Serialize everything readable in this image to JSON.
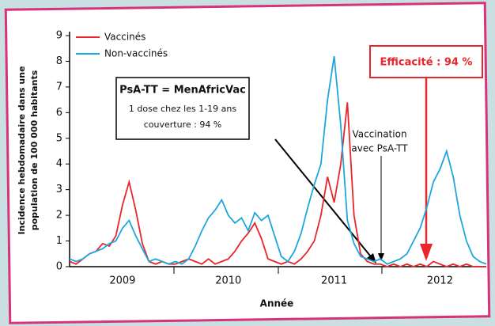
{
  "chart_data": {
    "type": "line",
    "y_label": [
      "Incidence hebdomadaire dans une",
      "population de 100 000 habitants"
    ],
    "x_label": "Année",
    "categories": [
      null,
      null,
      null,
      null,
      null,
      null,
      null,
      null,
      "2009",
      null,
      null,
      null,
      null,
      null,
      null,
      null,
      null,
      null,
      null,
      null,
      null,
      null,
      null,
      null,
      "2010",
      null,
      null,
      null,
      null,
      null,
      null,
      null,
      null,
      null,
      null,
      null,
      null,
      null,
      null,
      null,
      "2011",
      null,
      null,
      null,
      null,
      null,
      null,
      null,
      null,
      null,
      null,
      null,
      null,
      null,
      null,
      null,
      "2012",
      null,
      null,
      null,
      null,
      null,
      null,
      null
    ],
    "series": [
      {
        "name": "Vaccinés",
        "color": "#e8262b",
        "values": [
          0.2,
          0.1,
          0.3,
          0.5,
          0.6,
          0.9,
          0.8,
          1.2,
          2.4,
          3.3,
          2.2,
          0.9,
          0.2,
          0.1,
          0.2,
          0.1,
          0.1,
          0.2,
          0.3,
          0.2,
          0.1,
          0.3,
          0.1,
          0.2,
          0.3,
          0.6,
          1.0,
          1.3,
          1.7,
          1.1,
          0.3,
          0.2,
          0.1,
          0.2,
          0.1,
          0.3,
          0.6,
          1.0,
          2.0,
          3.5,
          2.5,
          4.0,
          6.4,
          2.0,
          0.5,
          0.2,
          0.1,
          0.1,
          0.0,
          0.1,
          0.0,
          0.1,
          0.0,
          0.1,
          0.0,
          0.2,
          0.1,
          0.0,
          0.1,
          0.0,
          0.1,
          0.0,
          0.0,
          0.0
        ]
      },
      {
        "name": "Non-vaccinés",
        "color": "#1ea7dd",
        "values": [
          0.3,
          0.2,
          0.3,
          0.5,
          0.6,
          0.7,
          0.9,
          1.0,
          1.5,
          1.8,
          1.2,
          0.7,
          0.2,
          0.3,
          0.2,
          0.1,
          0.2,
          0.1,
          0.3,
          0.8,
          1.4,
          1.9,
          2.2,
          2.6,
          2.0,
          1.7,
          1.9,
          1.4,
          2.1,
          1.8,
          2.0,
          1.2,
          0.4,
          0.2,
          0.6,
          1.3,
          2.3,
          3.2,
          4.0,
          6.5,
          8.2,
          5.5,
          1.8,
          0.9,
          0.4,
          0.3,
          0.2,
          0.3,
          0.1,
          0.2,
          0.3,
          0.5,
          1.0,
          1.5,
          2.3,
          3.3,
          3.8,
          4.5,
          3.5,
          2.0,
          1.0,
          0.4,
          0.2,
          0.1
        ]
      }
    ],
    "ylim": [
      0,
      9
    ],
    "yticks": [
      0,
      1,
      2,
      3,
      4,
      5,
      6,
      7,
      8,
      9
    ],
    "annotations": {
      "box": [
        "PsA-TT = MenAfricVac",
        "1 dose chez les 1-19 ans",
        "couverture : 94 %"
      ],
      "vaccination": [
        "Vaccination",
        "avec PsA-TT"
      ],
      "efficacy": "Efficacité : 94 %"
    }
  }
}
